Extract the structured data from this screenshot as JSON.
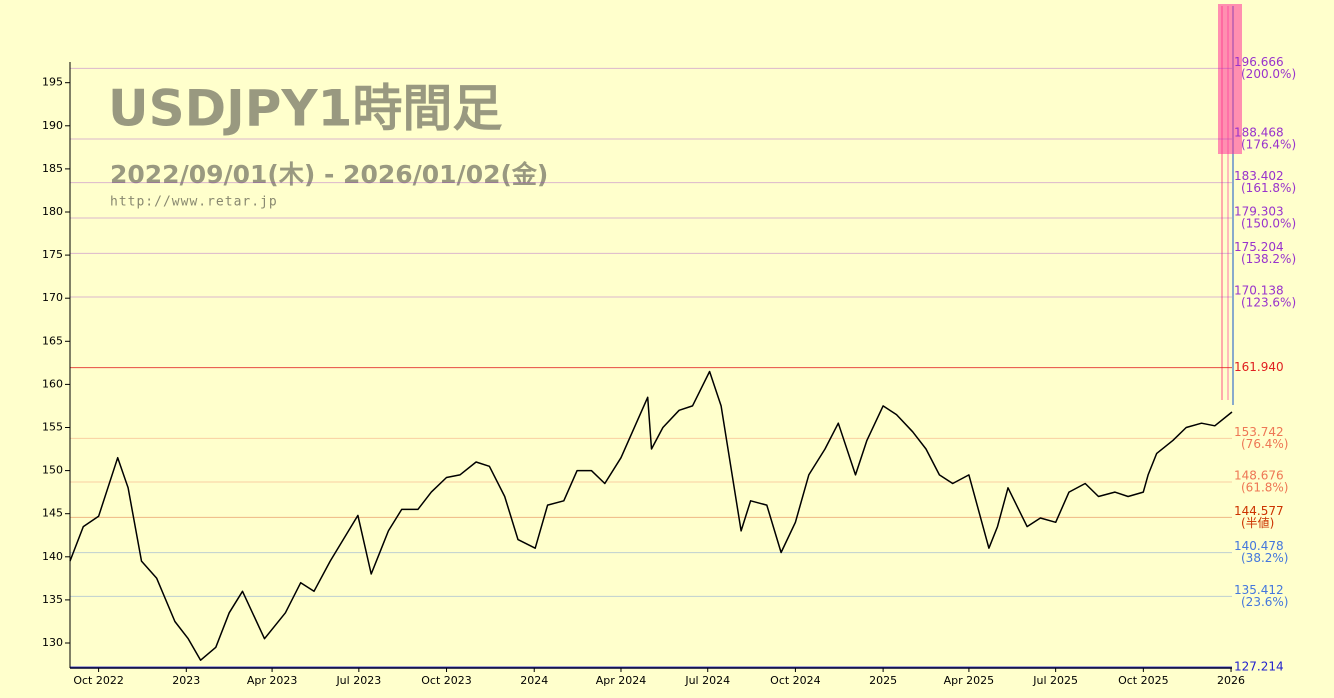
{
  "chart_data": {
    "type": "line",
    "title": "USDJPY1時間足",
    "subtitle": "2022/09/01(木) - 2026/01/02(金)",
    "url": "http://www.retar.jp",
    "x": [
      "2022-09-01",
      "2022-09-15",
      "2022-10-01",
      "2022-10-21",
      "2022-11-01",
      "2022-11-15",
      "2022-12-01",
      "2022-12-20",
      "2023-01-03",
      "2023-01-16",
      "2023-02-01",
      "2023-02-15",
      "2023-03-01",
      "2023-03-24",
      "2023-04-15",
      "2023-05-01",
      "2023-05-15",
      "2023-06-01",
      "2023-06-30",
      "2023-07-14",
      "2023-08-01",
      "2023-08-15",
      "2023-09-01",
      "2023-09-15",
      "2023-10-01",
      "2023-10-15",
      "2023-11-01",
      "2023-11-15",
      "2023-12-01",
      "2023-12-15",
      "2024-01-02",
      "2024-01-15",
      "2024-02-01",
      "2024-02-15",
      "2024-03-01",
      "2024-03-15",
      "2024-04-01",
      "2024-04-29",
      "2024-05-03",
      "2024-05-15",
      "2024-06-01",
      "2024-06-15",
      "2024-07-03",
      "2024-07-15",
      "2024-08-05",
      "2024-08-15",
      "2024-09-01",
      "2024-09-16",
      "2024-10-01",
      "2024-10-15",
      "2024-11-01",
      "2024-11-15",
      "2024-12-03",
      "2024-12-15",
      "2025-01-01",
      "2025-01-15",
      "2025-02-01",
      "2025-02-15",
      "2025-03-01",
      "2025-03-15",
      "2025-04-01",
      "2025-04-22",
      "2025-05-01",
      "2025-05-12",
      "2025-06-01",
      "2025-06-15",
      "2025-07-01",
      "2025-07-15",
      "2025-08-01",
      "2025-08-15",
      "2025-09-01",
      "2025-09-15",
      "2025-10-01",
      "2025-10-06",
      "2025-10-15",
      "2025-11-01",
      "2025-11-15",
      "2025-12-01",
      "2025-12-15",
      "2026-01-02"
    ],
    "series": [
      {
        "color": "#000000",
        "values": [
          139.5,
          143.5,
          144.7,
          151.5,
          148.0,
          139.5,
          137.5,
          132.5,
          130.5,
          128.0,
          129.5,
          133.5,
          136.0,
          130.5,
          133.5,
          137.0,
          136.0,
          139.5,
          144.8,
          138.0,
          143.0,
          145.5,
          145.5,
          147.5,
          149.2,
          149.5,
          151.0,
          150.5,
          147.0,
          142.0,
          141.0,
          146.0,
          146.5,
          150.0,
          150.0,
          148.5,
          151.5,
          158.5,
          152.5,
          155.0,
          157.0,
          157.5,
          161.5,
          157.5,
          143.0,
          146.5,
          146.0,
          140.5,
          144.0,
          149.5,
          152.5,
          155.5,
          149.5,
          153.5,
          157.5,
          156.5,
          154.5,
          152.5,
          149.5,
          148.5,
          149.5,
          141.0,
          143.5,
          148.0,
          143.5,
          144.5,
          144.0,
          147.5,
          148.5,
          147.0,
          147.5,
          147.0,
          147.5,
          149.5,
          152.0,
          153.5,
          155.0,
          155.5,
          155.2,
          156.8
        ]
      }
    ],
    "xlim": [
      "2022-09-01",
      "2026-01-02"
    ],
    "xticks": [
      {
        "value": "2022-10-01",
        "label": "Oct 2022"
      },
      {
        "value": "2023-01-01",
        "label": "2023"
      },
      {
        "value": "2023-04-01",
        "label": "Apr 2023"
      },
      {
        "value": "2023-07-01",
        "label": "Jul 2023"
      },
      {
        "value": "2023-10-01",
        "label": "Oct 2023"
      },
      {
        "value": "2024-01-01",
        "label": "2024"
      },
      {
        "value": "2024-04-01",
        "label": "Apr 2024"
      },
      {
        "value": "2024-07-01",
        "label": "Jul 2024"
      },
      {
        "value": "2024-10-01",
        "label": "Oct 2024"
      },
      {
        "value": "2025-01-01",
        "label": "2025"
      },
      {
        "value": "2025-04-01",
        "label": "Apr 2025"
      },
      {
        "value": "2025-07-01",
        "label": "Jul 2025"
      },
      {
        "value": "2025-10-01",
        "label": "Oct 2025"
      },
      {
        "value": "2026-01-01",
        "label": "2026"
      }
    ],
    "ylim": [
      127.1,
      197.4
    ],
    "yticks": [
      130,
      135,
      140,
      145,
      150,
      155,
      160,
      165,
      170,
      175,
      180,
      185,
      190,
      195
    ],
    "levels": [
      {
        "value": 196.666,
        "label": "196.666",
        "note": "(200.0%)",
        "color": "#9933cc"
      },
      {
        "value": 188.468,
        "label": "188.468",
        "note": "(176.4%)",
        "color": "#9933cc"
      },
      {
        "value": 183.402,
        "label": "183.402",
        "note": "(161.8%)",
        "color": "#9933cc"
      },
      {
        "value": 179.303,
        "label": "179.303",
        "note": "(150.0%)",
        "color": "#9933cc"
      },
      {
        "value": 175.204,
        "label": "175.204",
        "note": "(138.2%)",
        "color": "#9933cc"
      },
      {
        "value": 170.138,
        "label": "170.138",
        "note": "(123.6%)",
        "color": "#9933cc"
      },
      {
        "value": 161.94,
        "label": "161.940",
        "color": "#e02020"
      },
      {
        "value": 153.742,
        "label": "153.742",
        "note": "(76.4%)",
        "color": "#ee7755"
      },
      {
        "value": 148.676,
        "label": "148.676",
        "note": "(61.8%)",
        "color": "#ee7755"
      },
      {
        "value": 144.577,
        "label": "144.577",
        "note": "(半値)",
        "color": "#cc3300"
      },
      {
        "value": 140.478,
        "label": "140.478",
        "note": "(38.2%)",
        "color": "#4477dd"
      },
      {
        "value": 135.412,
        "label": "135.412",
        "note": "(23.6%)",
        "color": "#4477dd"
      },
      {
        "value": 127.214,
        "label": "127.214",
        "color": "#2222cc"
      }
    ]
  }
}
